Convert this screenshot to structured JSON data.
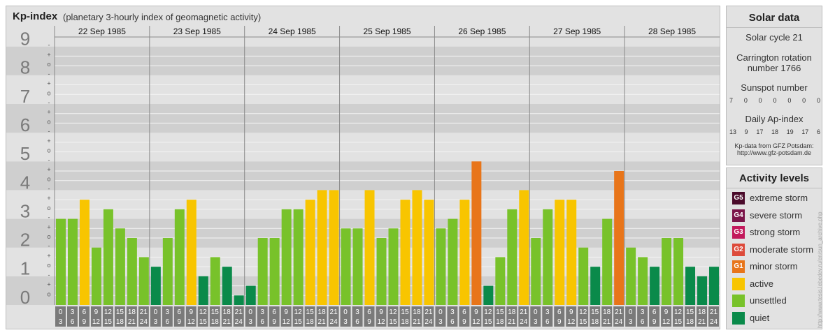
{
  "header": {
    "title": "Kp-index",
    "subtitle": "(planetary 3-hourly index of geomagnetic activity)"
  },
  "chart_data": {
    "type": "bar",
    "title": "Kp-index",
    "subtitle": "(planetary 3-hourly index of geomagnetic activity)",
    "y_tick_labels": [
      "0",
      "1",
      "2",
      "3",
      "4",
      "5",
      "6",
      "7",
      "8",
      "9"
    ],
    "ylim": [
      0,
      9
    ],
    "sub_tick_labels": [
      "-",
      "o",
      "+"
    ],
    "dates": [
      "22 Sep 1985",
      "23 Sep 1985",
      "24 Sep 1985",
      "25 Sep 1985",
      "26 Sep 1985",
      "27 Sep 1985",
      "28 Sep 1985"
    ],
    "hour_labels_top": [
      "0",
      "3",
      "6",
      "9",
      "12",
      "15",
      "18",
      "21"
    ],
    "hour_labels_bottom": [
      "3",
      "6",
      "9",
      "12",
      "15",
      "18",
      "21",
      "24"
    ],
    "values": [
      [
        3.0,
        3.0,
        3.667,
        2.0,
        3.333,
        2.667,
        2.333,
        1.667
      ],
      [
        1.333,
        2.333,
        3.333,
        3.667,
        1.0,
        1.667,
        1.333,
        0.333
      ],
      [
        0.667,
        2.333,
        2.333,
        3.333,
        3.333,
        3.667,
        4.0,
        4.0
      ],
      [
        2.667,
        2.667,
        4.0,
        2.333,
        2.667,
        3.667,
        4.0,
        3.667
      ],
      [
        2.667,
        3.0,
        3.667,
        5.0,
        0.667,
        1.667,
        3.333,
        4.0
      ],
      [
        2.333,
        3.333,
        3.667,
        3.667,
        2.0,
        1.333,
        3.0,
        4.667
      ],
      [
        2.0,
        1.667,
        1.333,
        2.333,
        2.333,
        1.333,
        1.0,
        1.333
      ]
    ],
    "level_colors": {
      "quiet": "#0a8a4a",
      "unsettled": "#78c22a",
      "active": "#f8c500",
      "minor storm": "#e8751a",
      "moderate storm": "#dd4a3a",
      "strong storm": "#c2185b",
      "severe storm": "#7b1449",
      "extreme storm": "#4a0a2a"
    }
  },
  "solar": {
    "title": "Solar data",
    "solar_cycle": "Solar cycle 21",
    "carrington_line1": "Carrington rotation",
    "carrington_line2": "number 1766",
    "sunspot_label": "Sunspot number",
    "sunspot_values": [
      "7",
      "0",
      "0",
      "0",
      "0",
      "0",
      "0"
    ],
    "ap_label": "Daily Ap-index",
    "ap_values": [
      "13",
      "9",
      "17",
      "18",
      "19",
      "17",
      "6"
    ],
    "source_line1": "Kp-data from GFZ Potsdam:",
    "source_line2": "http://www.gfz-potsdam.de"
  },
  "activity": {
    "title": "Activity levels",
    "items": [
      {
        "code": "G5",
        "label": "extreme storm",
        "color": "#4a0a2a"
      },
      {
        "code": "G4",
        "label": "severe storm",
        "color": "#7b1449"
      },
      {
        "code": "G3",
        "label": "strong storm",
        "color": "#c2185b"
      },
      {
        "code": "G2",
        "label": "moderate storm",
        "color": "#dd4a3a"
      },
      {
        "code": "G1",
        "label": "minor storm",
        "color": "#e8751a"
      },
      {
        "code": "",
        "label": "active",
        "color": "#f8c500"
      },
      {
        "code": "",
        "label": "unsettled",
        "color": "#78c22a"
      },
      {
        "code": "",
        "label": "quiet",
        "color": "#0a8a4a"
      }
    ]
  },
  "watermark": "http://www.tesis.lebedev.ru/en/sun_archive.php"
}
